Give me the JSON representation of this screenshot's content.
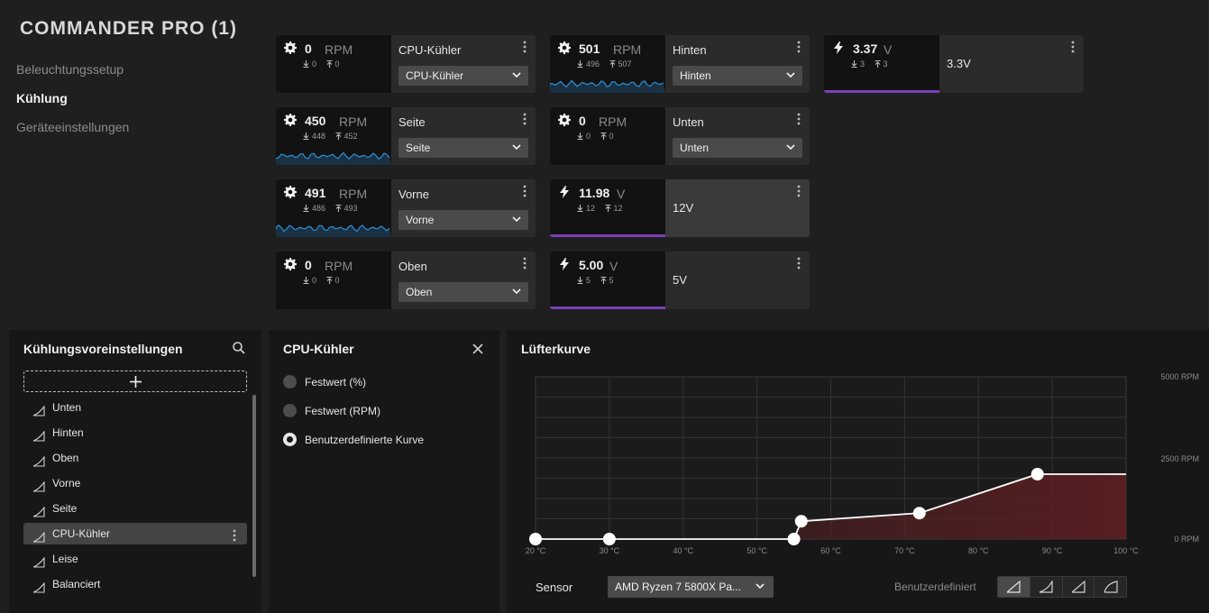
{
  "app": {
    "title": "COMMANDER PRO (1)"
  },
  "nav": [
    {
      "label": "Beleuchtungssetup"
    },
    {
      "label": "Kühlung"
    },
    {
      "label": "Geräteeinstellungen"
    }
  ],
  "fans": [
    {
      "value": "0",
      "unit": "RPM",
      "min": "0",
      "max": "0",
      "name": "CPU-Kühler",
      "preset": "CPU-Kühler",
      "spark": false
    },
    {
      "value": "450",
      "unit": "RPM",
      "min": "448",
      "max": "452",
      "name": "Seite",
      "preset": "Seite",
      "spark": true
    },
    {
      "value": "491",
      "unit": "RPM",
      "min": "486",
      "max": "493",
      "name": "Vorne",
      "preset": "Vorne",
      "spark": true
    },
    {
      "value": "0",
      "unit": "RPM",
      "min": "0",
      "max": "0",
      "name": "Oben",
      "preset": "Oben",
      "spark": false
    },
    {
      "value": "501",
      "unit": "RPM",
      "min": "496",
      "max": "507",
      "name": "Hinten",
      "preset": "Hinten",
      "spark": true
    },
    {
      "value": "0",
      "unit": "RPM",
      "min": "0",
      "max": "0",
      "name": "Unten",
      "preset": "Unten",
      "spark": false
    }
  ],
  "voltages": [
    {
      "value": "11.98",
      "unit": "V",
      "min": "12",
      "max": "12",
      "name": "12V"
    },
    {
      "value": "5.00",
      "unit": "V",
      "min": "5",
      "max": "5",
      "name": "5V"
    },
    {
      "value": "3.37",
      "unit": "V",
      "min": "3",
      "max": "3",
      "name": "3.3V"
    }
  ],
  "presets_panel": {
    "title": "Kühlungsvoreinstellungen",
    "items": [
      {
        "label": "Unten"
      },
      {
        "label": "Hinten"
      },
      {
        "label": "Oben"
      },
      {
        "label": "Vorne"
      },
      {
        "label": "Seite"
      },
      {
        "label": "CPU-Kühler"
      },
      {
        "label": "Leise"
      },
      {
        "label": "Balanciert"
      }
    ],
    "selected": "CPU-Kühler"
  },
  "mode_panel": {
    "title": "CPU-Kühler",
    "options": [
      {
        "label": "Festwert (%)"
      },
      {
        "label": "Festwert (RPM)"
      },
      {
        "label": "Benutzerdefinierte Kurve"
      }
    ],
    "selected": "Benutzerdefinierte Kurve"
  },
  "curve_panel": {
    "title": "Lüfterkurve",
    "sensor_label": "Sensor",
    "sensor_value": "AMD Ryzen 7 5800X Pa...",
    "mode_label": "Benutzerdefiniert"
  },
  "chart_data": {
    "type": "line",
    "title": "Lüfterkurve",
    "x_ticks": [
      "20 °C",
      "30 °C",
      "40 °C",
      "50 °C",
      "60 °C",
      "70 °C",
      "80 °C",
      "90 °C",
      "100 °C"
    ],
    "y_ticks": [
      "5000 RPM",
      "2500 RPM",
      "0 RPM"
    ],
    "xlim": [
      20,
      100
    ],
    "ylim": [
      0,
      5000
    ],
    "series": [
      {
        "x": [
          20,
          30,
          55,
          56,
          72,
          88,
          100
        ],
        "y": [
          0,
          0,
          0,
          550,
          800,
          2000,
          2000
        ]
      }
    ],
    "points_shown": [
      {
        "x": 20,
        "y": 0
      },
      {
        "x": 30,
        "y": 0
      },
      {
        "x": 55,
        "y": 0
      },
      {
        "x": 56,
        "y": 550
      },
      {
        "x": 72,
        "y": 800
      },
      {
        "x": 88,
        "y": 2000
      }
    ],
    "fill_color": "#5a1f22",
    "line_color": "#ffffff",
    "grid": true
  },
  "colors": {
    "spark": "#2e8fd6",
    "volt_bar": "#7b3fb8"
  }
}
